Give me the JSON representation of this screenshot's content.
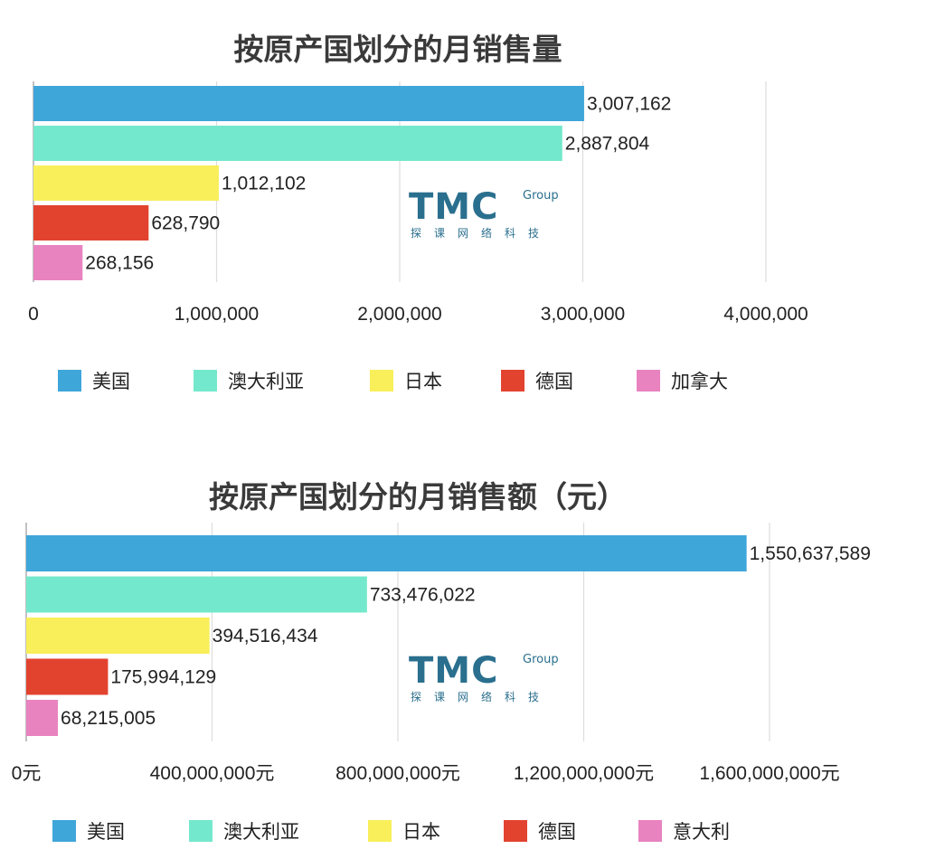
{
  "watermark": {
    "main": "TMC",
    "group": "Group",
    "sub": "探课网络科技"
  },
  "chart_data": [
    {
      "type": "bar",
      "orientation": "horizontal",
      "title": "按原产国划分的月销售量",
      "categories": [
        "美国",
        "澳大利亚",
        "日本",
        "德国",
        "加拿大"
      ],
      "values": [
        3007162,
        2887804,
        1012102,
        628790,
        268156
      ],
      "value_labels": [
        "3,007,162",
        "2,887,804",
        "1,012,102",
        "628,790",
        "268,156"
      ],
      "colors": [
        "#3fa6da",
        "#74e8cc",
        "#f8ef5a",
        "#e2432f",
        "#e883c0"
      ],
      "xlim": [
        0,
        4000000
      ],
      "xticks": [
        0,
        1000000,
        2000000,
        3000000,
        4000000
      ],
      "xtick_labels": [
        "0",
        "1,000,000",
        "2,000,000",
        "3,000,000",
        "4,000,000"
      ],
      "grid": true,
      "legend": [
        "美国",
        "澳大利亚",
        "日本",
        "德国",
        "加拿大"
      ],
      "legend_position": "bottom"
    },
    {
      "type": "bar",
      "orientation": "horizontal",
      "title": "按原产国划分的月销售额（元）",
      "categories": [
        "美国",
        "澳大利亚",
        "日本",
        "德国",
        "意大利"
      ],
      "values": [
        1550637589,
        733476022,
        394516434,
        175994129,
        68215005
      ],
      "value_labels": [
        "1,550,637,589",
        "733,476,022",
        "394,516,434",
        "175,994,129",
        "68,215,005"
      ],
      "colors": [
        "#3fa6da",
        "#74e8cc",
        "#f8ef5a",
        "#e2432f",
        "#e883c0"
      ],
      "xlim": [
        0,
        1600000000
      ],
      "xticks": [
        0,
        400000000,
        800000000,
        1200000000,
        1600000000
      ],
      "xtick_labels": [
        "0元",
        "400,000,000元",
        "800,000,000元",
        "1,200,000,000元",
        "1,600,000,000元"
      ],
      "grid": true,
      "legend": [
        "美国",
        "澳大利亚",
        "日本",
        "德国",
        "意大利"
      ],
      "legend_position": "bottom"
    }
  ]
}
